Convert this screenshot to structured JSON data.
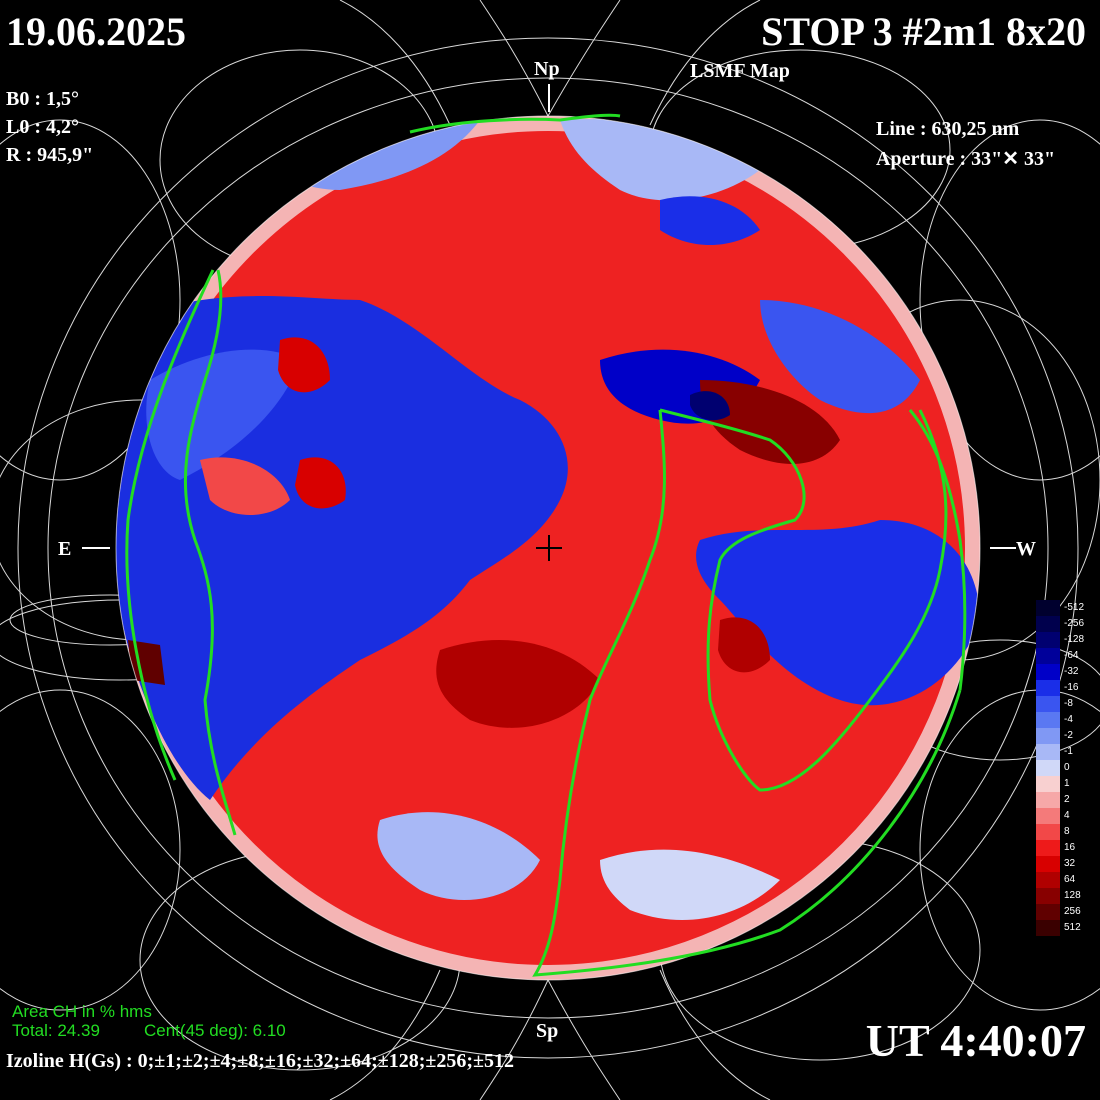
{
  "header": {
    "date": "19.06.2025",
    "title": "STOP 3 #2m1 8x20",
    "subtitle": "LSMF  Map"
  },
  "parameters": {
    "b0": "B0 : 1,5°",
    "l0": "L0 : 4,2°",
    "r": "R  : 945,9\""
  },
  "instrument": {
    "line": "Line :  630,25 nm",
    "aperture": "Aperture : 33\"✕ 33\""
  },
  "poles": {
    "north": "Np",
    "south": "Sp",
    "east": "E",
    "west": "W"
  },
  "coronal_hole": {
    "heading": "Area CH in % hms",
    "total": "Total: 24.39",
    "central": "Cent(45 deg): 6.10"
  },
  "time": "UT 4:40:07",
  "izoline": "Izoline H(Gs) : 0;±1;±2;±4;±8;±16;±32;±64;±128;±256;±512",
  "scale": {
    "labels": [
      "-512",
      "-256",
      "-128",
      "-64",
      "-32",
      "-16",
      "-8",
      "-4",
      "-2",
      "-1",
      "0",
      "1",
      "2",
      "4",
      "8",
      "16",
      "32",
      "64",
      "128",
      "256",
      "512"
    ],
    "colors": [
      "#00002e",
      "#00004d",
      "#000070",
      "#00009a",
      "#0000c8",
      "#1a2ee8",
      "#3a55f0",
      "#5a78f2",
      "#8098f4",
      "#a8b8f6",
      "#d0d8f8",
      "#f8d0d0",
      "#f6a8a8",
      "#f47a7a",
      "#f24848",
      "#ee1a1a",
      "#d80000",
      "#b00000",
      "#880000",
      "#600000",
      "#3a0000"
    ]
  }
}
